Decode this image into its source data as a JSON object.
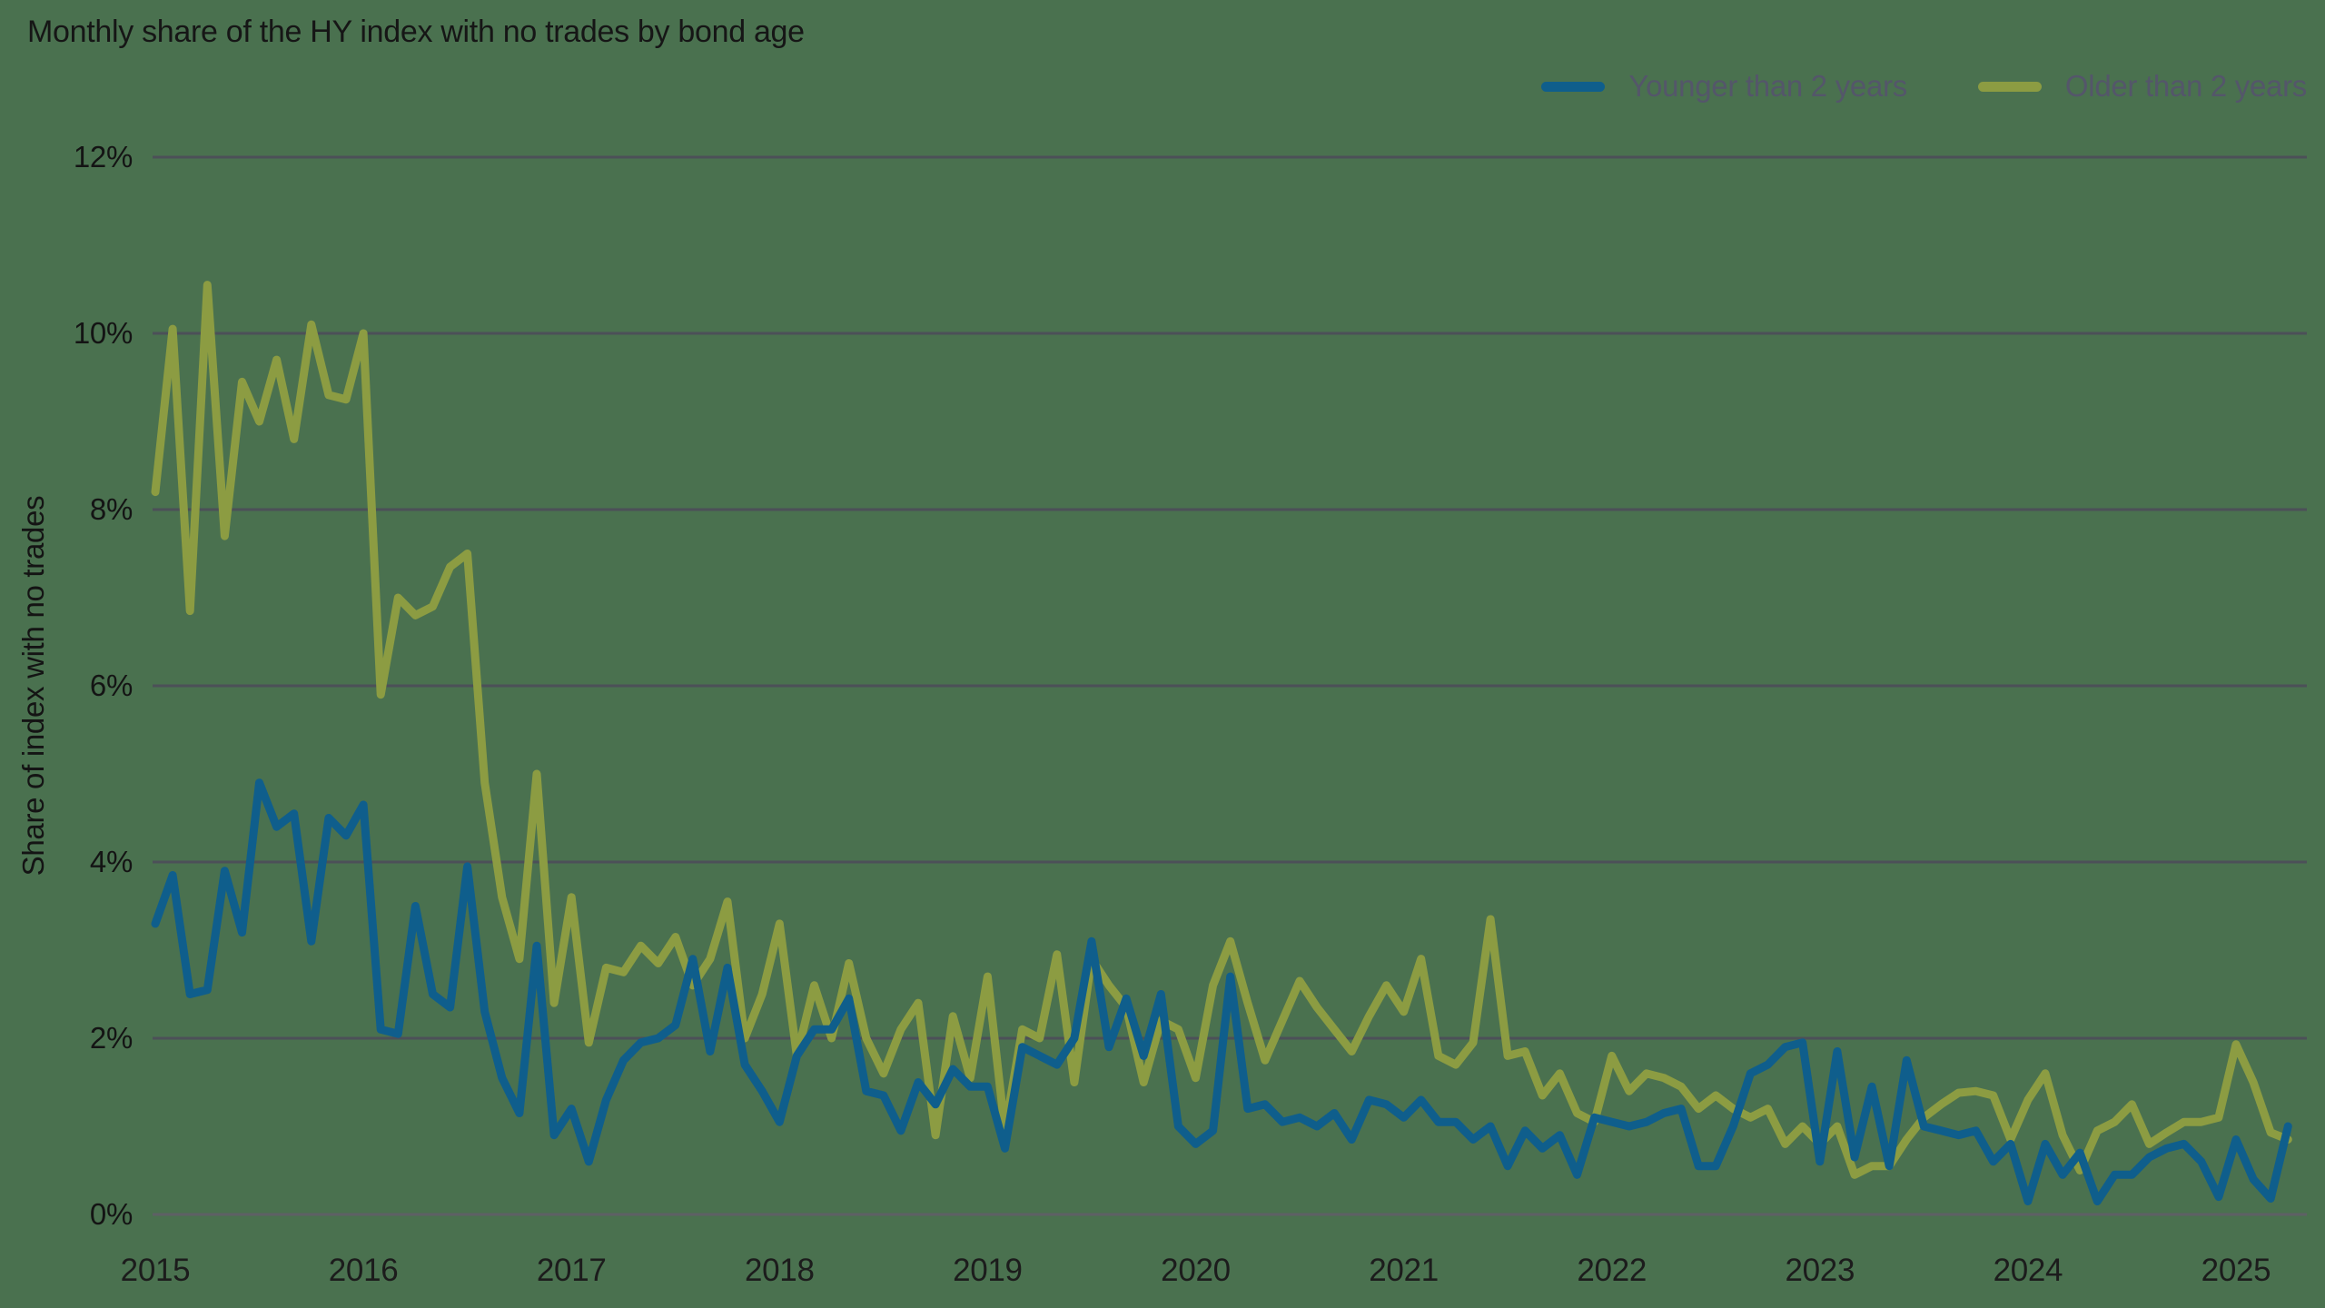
{
  "title": "Monthly share of the HY index with no trades by bond age",
  "legend": [
    {
      "label": "Younger than 2 years",
      "color": "#0F5E8C"
    },
    {
      "label": "Older than 2 years",
      "color": "#8C9C42"
    }
  ],
  "colors": {
    "background": "#4A714F",
    "gridline": "#4C5058",
    "zero_axis": "#5E6065",
    "title_text": "#161616",
    "tick_text": "#1C1C1C",
    "legend_text": "#54566A",
    "series_younger": "#0F5E8C",
    "series_older": "#8C9C42"
  },
  "chart_data": {
    "type": "line",
    "title": "Monthly share of the HY index with no trades by bond age",
    "xlabel": "",
    "ylabel": "Share of index with no trades",
    "x_start": "2015-01",
    "x_end": "2025-04",
    "x_frequency": "monthly",
    "x_tick_labels": [
      "2015",
      "2016",
      "2017",
      "2018",
      "2019",
      "2020",
      "2021",
      "2022",
      "2023",
      "2024",
      "2025"
    ],
    "x_tick_month_indices": [
      0,
      12,
      24,
      36,
      48,
      60,
      72,
      84,
      96,
      108,
      120
    ],
    "y_ticks": [
      0,
      2,
      4,
      6,
      8,
      10,
      12
    ],
    "y_tick_suffix": "%",
    "ylim": [
      0,
      12
    ],
    "grid": "horizontal",
    "legend_position": "top-right",
    "series": [
      {
        "name": "Younger than 2 years",
        "color": "#0F5E8C",
        "values": [
          3.3,
          3.85,
          2.5,
          2.55,
          3.9,
          3.2,
          4.9,
          4.4,
          4.55,
          3.1,
          4.5,
          4.3,
          4.65,
          2.1,
          2.05,
          3.5,
          2.5,
          2.35,
          3.95,
          2.3,
          1.55,
          1.15,
          3.05,
          0.9,
          1.2,
          0.6,
          1.3,
          1.75,
          1.95,
          2.0,
          2.15,
          2.9,
          1.85,
          2.8,
          1.7,
          1.4,
          1.05,
          1.8,
          2.1,
          2.1,
          2.45,
          1.4,
          1.35,
          0.95,
          1.5,
          1.25,
          1.65,
          1.45,
          1.45,
          0.75,
          1.9,
          1.8,
          1.7,
          2.0,
          3.1,
          1.9,
          2.45,
          1.8,
          2.5,
          1.0,
          0.8,
          0.95,
          2.7,
          1.2,
          1.25,
          1.05,
          1.1,
          1.0,
          1.15,
          0.85,
          1.3,
          1.25,
          1.1,
          1.3,
          1.05,
          1.05,
          0.85,
          1.0,
          0.55,
          0.95,
          0.75,
          0.9,
          0.45,
          1.1,
          1.05,
          1.0,
          1.05,
          1.15,
          1.2,
          0.55,
          0.55,
          1.0,
          1.6,
          1.7,
          1.9,
          1.95,
          0.6,
          1.85,
          0.65,
          1.45,
          0.55,
          1.75,
          1.0,
          0.95,
          0.9,
          0.95,
          0.6,
          0.8,
          0.15,
          0.8,
          0.45,
          0.7,
          0.15,
          0.45,
          0.45,
          0.65,
          0.75,
          0.8,
          0.6,
          0.2,
          0.85,
          0.4,
          0.18,
          1.0
        ]
      },
      {
        "name": "Older than 2 years",
        "color": "#8C9C42",
        "values": [
          8.2,
          10.05,
          6.85,
          10.55,
          7.7,
          9.45,
          9.0,
          9.7,
          8.8,
          10.1,
          9.3,
          9.25,
          10.0,
          5.9,
          7.0,
          6.8,
          6.9,
          7.35,
          7.5,
          4.9,
          3.6,
          2.9,
          5.0,
          2.4,
          3.6,
          1.95,
          2.8,
          2.75,
          3.05,
          2.85,
          3.15,
          2.6,
          2.9,
          3.55,
          2.0,
          2.5,
          3.3,
          1.8,
          2.6,
          2.0,
          2.85,
          2.0,
          1.6,
          2.1,
          2.4,
          0.9,
          2.25,
          1.55,
          2.7,
          0.95,
          2.1,
          2.0,
          2.95,
          1.5,
          2.9,
          2.6,
          2.35,
          1.5,
          2.2,
          2.1,
          1.55,
          2.6,
          3.1,
          2.4,
          1.75,
          2.2,
          2.65,
          2.35,
          2.1,
          1.85,
          2.25,
          2.6,
          2.3,
          2.9,
          1.8,
          1.7,
          1.95,
          3.35,
          1.8,
          1.85,
          1.35,
          1.6,
          1.15,
          1.05,
          1.8,
          1.4,
          1.6,
          1.55,
          1.45,
          1.2,
          1.35,
          1.2,
          1.1,
          1.2,
          0.8,
          1.0,
          0.8,
          1.0,
          0.45,
          0.55,
          0.55,
          0.85,
          1.1,
          1.25,
          1.38,
          1.4,
          1.35,
          0.85,
          1.3,
          1.6,
          0.9,
          0.5,
          0.95,
          1.05,
          1.25,
          0.8,
          0.93,
          1.05,
          1.05,
          1.1,
          1.93,
          1.5,
          0.93,
          0.85
        ]
      }
    ]
  }
}
